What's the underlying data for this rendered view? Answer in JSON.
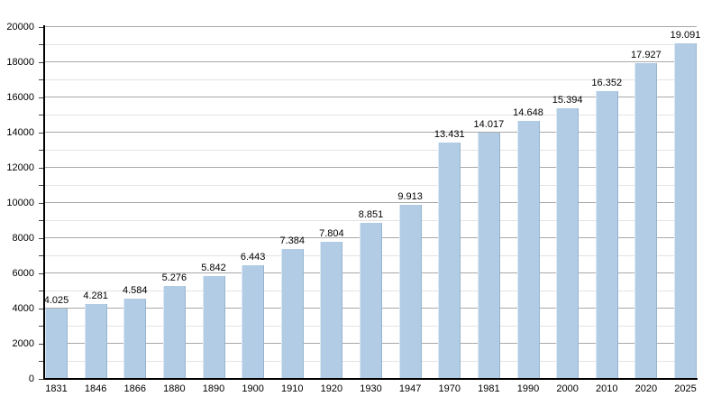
{
  "page": {
    "background": "#ffffff"
  },
  "chart_data": {
    "type": "bar",
    "title": "",
    "xlabel": "",
    "ylabel": "",
    "ylim": [
      0,
      20000
    ],
    "y_major_step": 2000,
    "y_minor_step": 1000,
    "y_tick_labels": [
      "0",
      "2000",
      "4000",
      "6000",
      "8000",
      "10000",
      "12000",
      "14000",
      "16000",
      "18000",
      "20000"
    ],
    "categories": [
      "1831",
      "1846",
      "1866",
      "1880",
      "1890",
      "1900",
      "1910",
      "1920",
      "1930",
      "1947",
      "1970",
      "1981",
      "1990",
      "2000",
      "2010",
      "2020",
      "2025"
    ],
    "values": [
      4025,
      4281,
      4584,
      5276,
      5842,
      6443,
      7384,
      7804,
      8851,
      9913,
      13431,
      14017,
      14648,
      15394,
      16352,
      17927,
      19091
    ],
    "value_labels": [
      "4.025",
      "4.281",
      "4.584",
      "5.276",
      "5.842",
      "6.443",
      "7.384",
      "7.804",
      "8.851",
      "9.913",
      "13.431",
      "14.017",
      "14.648",
      "15.394",
      "16.352",
      "17.927",
      "19.091"
    ],
    "legend": null,
    "grid": "horizontal, major every 2000 and minor every 1000",
    "colors": {
      "bar_fill": "#b1cce4",
      "bar_edge_right": "#97b4d0",
      "bar_edge_left": "#dde9f4",
      "grid_major": "#a9a9a9",
      "grid_minor": "#e3e3e3",
      "axis": "#000000",
      "text": "#000000"
    }
  }
}
